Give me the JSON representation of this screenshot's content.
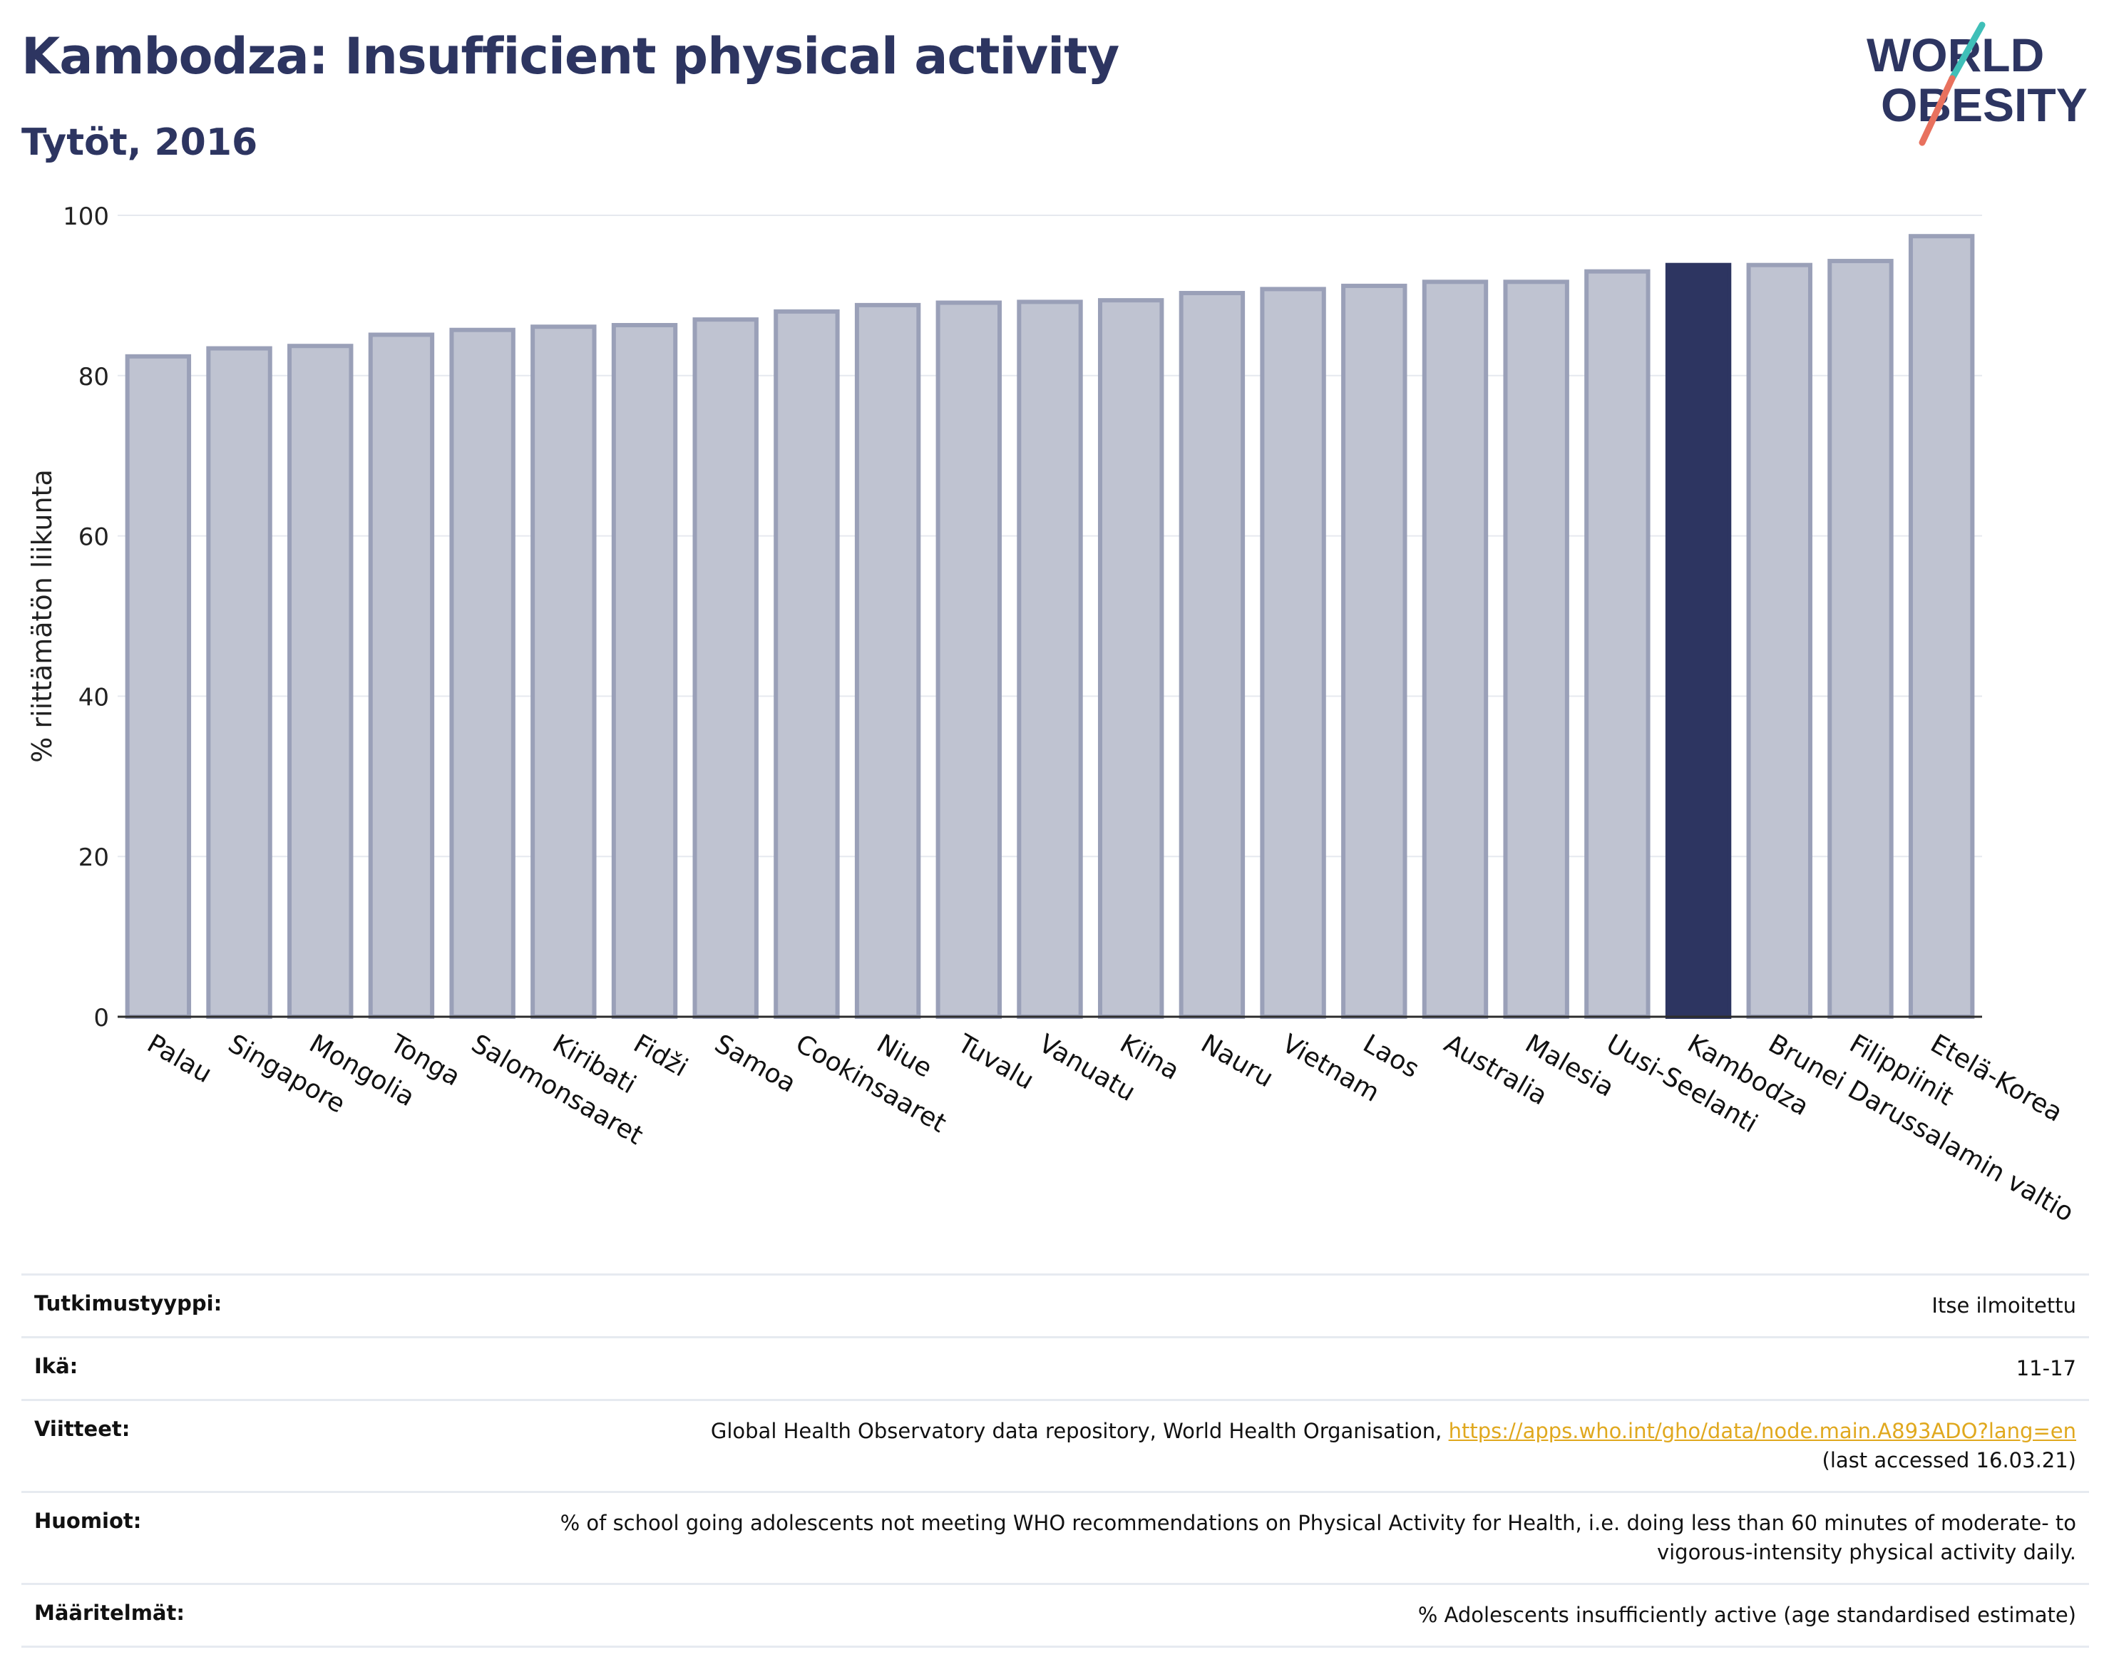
{
  "header": {
    "title": "Kambodza: Insufficient physical activity",
    "subtitle": "Tytöt, 2016"
  },
  "logo": {
    "line1": "WORLD",
    "line2": "OBESITY",
    "accent_colors": [
      "#3fbfb8",
      "#e8715e"
    ]
  },
  "chart_data": {
    "type": "bar",
    "ylabel": "% riittämätön liikunta",
    "ylim": [
      0,
      100
    ],
    "yticks": [
      0,
      20,
      40,
      60,
      80,
      100
    ],
    "grid": true,
    "categories": [
      "Palau",
      "Singapore",
      "Mongolia",
      "Tonga",
      "Salomonsaaret",
      "Kiribati",
      "Fidži",
      "Samoa",
      "Cookinsaaret",
      "Niue",
      "Tuvalu",
      "Vanuatu",
      "Kiina",
      "Nauru",
      "Vietnam",
      "Laos",
      "Australia",
      "Malesia",
      "Uusi-Seelanti",
      "Kambodza",
      "Brunei Darussalamin valtio",
      "Filippiinit",
      "Etelä-Korea"
    ],
    "values": [
      82.4,
      83.4,
      83.7,
      85.1,
      85.7,
      86.1,
      86.3,
      87.0,
      88.0,
      88.8,
      89.1,
      89.2,
      89.4,
      90.3,
      90.8,
      91.2,
      91.7,
      91.7,
      93.0,
      93.8,
      93.8,
      94.3,
      97.4
    ],
    "highlight": "Kambodza",
    "colors": {
      "bar": "#bfc3d1",
      "bar_edge": "#9aa0b8",
      "highlight": "#2d3561"
    }
  },
  "info": [
    {
      "label": "Tutkimustyyppi:",
      "value": "Itse ilmoitettu"
    },
    {
      "label": "Ikä:",
      "value": "11-17"
    },
    {
      "label": "Viitteet:",
      "value": "Global Health Observatory data repository, World Health Organisation, ",
      "link": "https://apps.who.int/gho/data/node.main.A893ADO?lang=en",
      "value2": "(last accessed 16.03.21)"
    },
    {
      "label": "Huomiot:",
      "value": "% of school going adolescents not meeting WHO recommendations on Physical Activity for Health, i.e. doing less than 60 minutes of moderate- to vigorous-intensity physical activity daily."
    },
    {
      "label": "Määritelmät:",
      "value": "% Adolescents insufficiently active (age standardised estimate)"
    }
  ]
}
